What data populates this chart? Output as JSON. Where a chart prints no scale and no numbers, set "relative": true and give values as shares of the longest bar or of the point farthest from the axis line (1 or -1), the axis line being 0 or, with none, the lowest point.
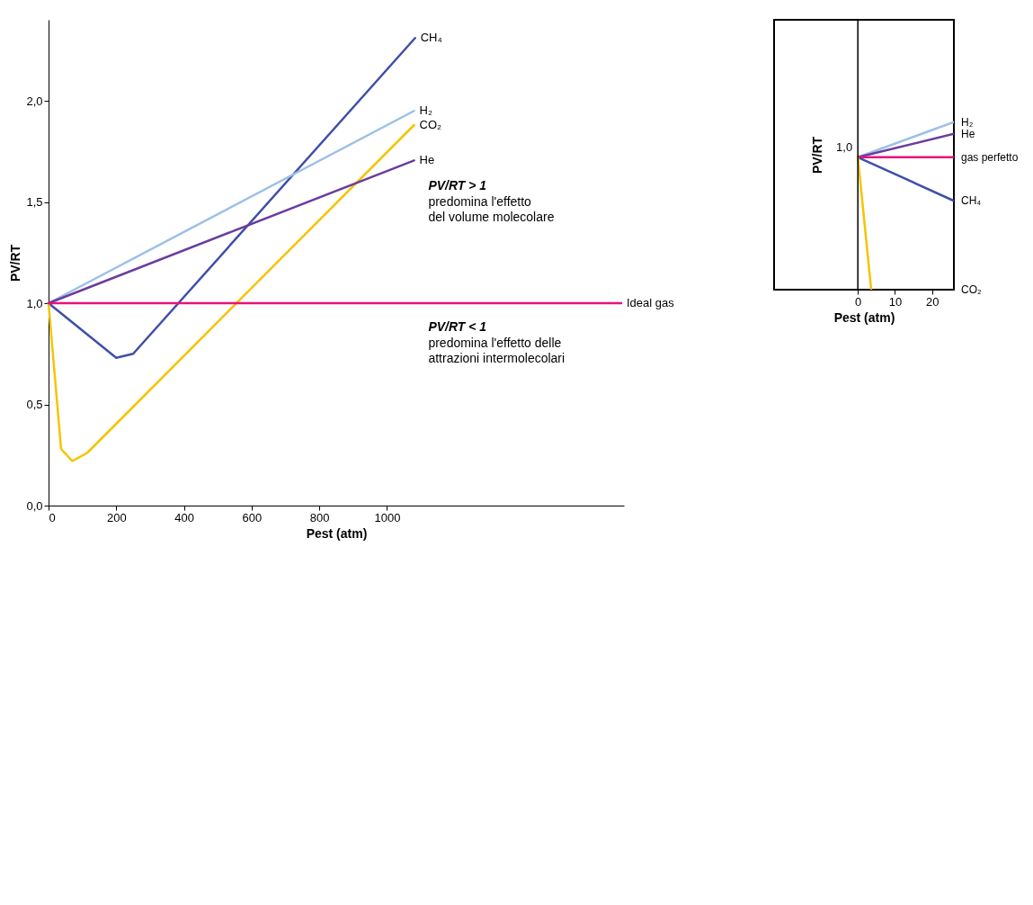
{
  "chart_data": [
    {
      "type": "line",
      "xlabel": "Pest (atm)",
      "ylabel": "PV/RT",
      "xlim": [
        0,
        1700
      ],
      "xticks": [
        0,
        200,
        400,
        600,
        800,
        1000
      ],
      "ylim": [
        0,
        2.4
      ],
      "yticks": [
        {
          "value": 0,
          "label": "0,0"
        },
        {
          "value": 0.5,
          "label": "0,5"
        },
        {
          "value": 1,
          "label": "1,0"
        },
        {
          "value": 1.5,
          "label": "1,5"
        },
        {
          "value": 2,
          "label": "2,0"
        }
      ],
      "grid": false,
      "legend": false,
      "marker": "none",
      "line_style": "solid",
      "series": [
        {
          "name": "CH₄",
          "color": "#3f4fa8",
          "x": [
            0,
            200,
            250,
            1083
          ],
          "values": [
            1.0,
            0.73,
            0.75,
            2.31
          ]
        },
        {
          "name": "H₂",
          "color": "#9cc0e6",
          "x": [
            0,
            1080
          ],
          "values": [
            1.0,
            1.95
          ]
        },
        {
          "name": "CO₂",
          "color": "#f5c400",
          "x": [
            0,
            37,
            70,
            114,
            1080
          ],
          "values": [
            1.0,
            0.28,
            0.22,
            0.26,
            1.88
          ]
        },
        {
          "name": "He",
          "color": "#6a3c9e",
          "x": [
            0,
            1080
          ],
          "values": [
            1.0,
            1.705
          ]
        },
        {
          "name": "Ideal gas",
          "color": "#e8127a",
          "x": [
            0,
            1692
          ],
          "values": [
            1.0,
            1.0
          ]
        }
      ],
      "annotations": [
        "PV/RT > 1\npredomina l'effetto\ndel volume molecolare",
        "PV/RT < 1\npredomina l'effetto delle\nattrazioni intermolecolari"
      ]
    },
    {
      "type": "line",
      "relative": true,
      "xlabel": "Pest (atm)",
      "ylabel": "PV/RT",
      "xlim": [
        -22.6,
        25.9
      ],
      "xticks": [
        0,
        10,
        20
      ],
      "annotations": [
        "1,0"
      ],
      "ref_lines": [
        {
          "axis": "x",
          "value": 0
        }
      ],
      "grid": false,
      "legend": false,
      "marker": "none",
      "line_style": "solid",
      "series": [
        {
          "name": "H₂",
          "color": "#9cc0e6",
          "x": [
            0,
            25.9
          ],
          "values": [
            0.79,
            1.0
          ]
        },
        {
          "name": "He",
          "color": "#6a3c9e",
          "x": [
            0,
            25.9
          ],
          "values": [
            0.79,
            0.93
          ]
        },
        {
          "name": "gas perfetto",
          "color": "#e8127a",
          "x": [
            0,
            25.9
          ],
          "values": [
            0.79,
            0.79
          ]
        },
        {
          "name": "CH₄",
          "color": "#3f4fa8",
          "x": [
            0,
            25.9
          ],
          "values": [
            0.79,
            0.53
          ]
        },
        {
          "name": "CO₂",
          "color": "#f5c400",
          "x": [
            0,
            3.6
          ],
          "values": [
            0.79,
            0.0
          ]
        }
      ]
    }
  ]
}
